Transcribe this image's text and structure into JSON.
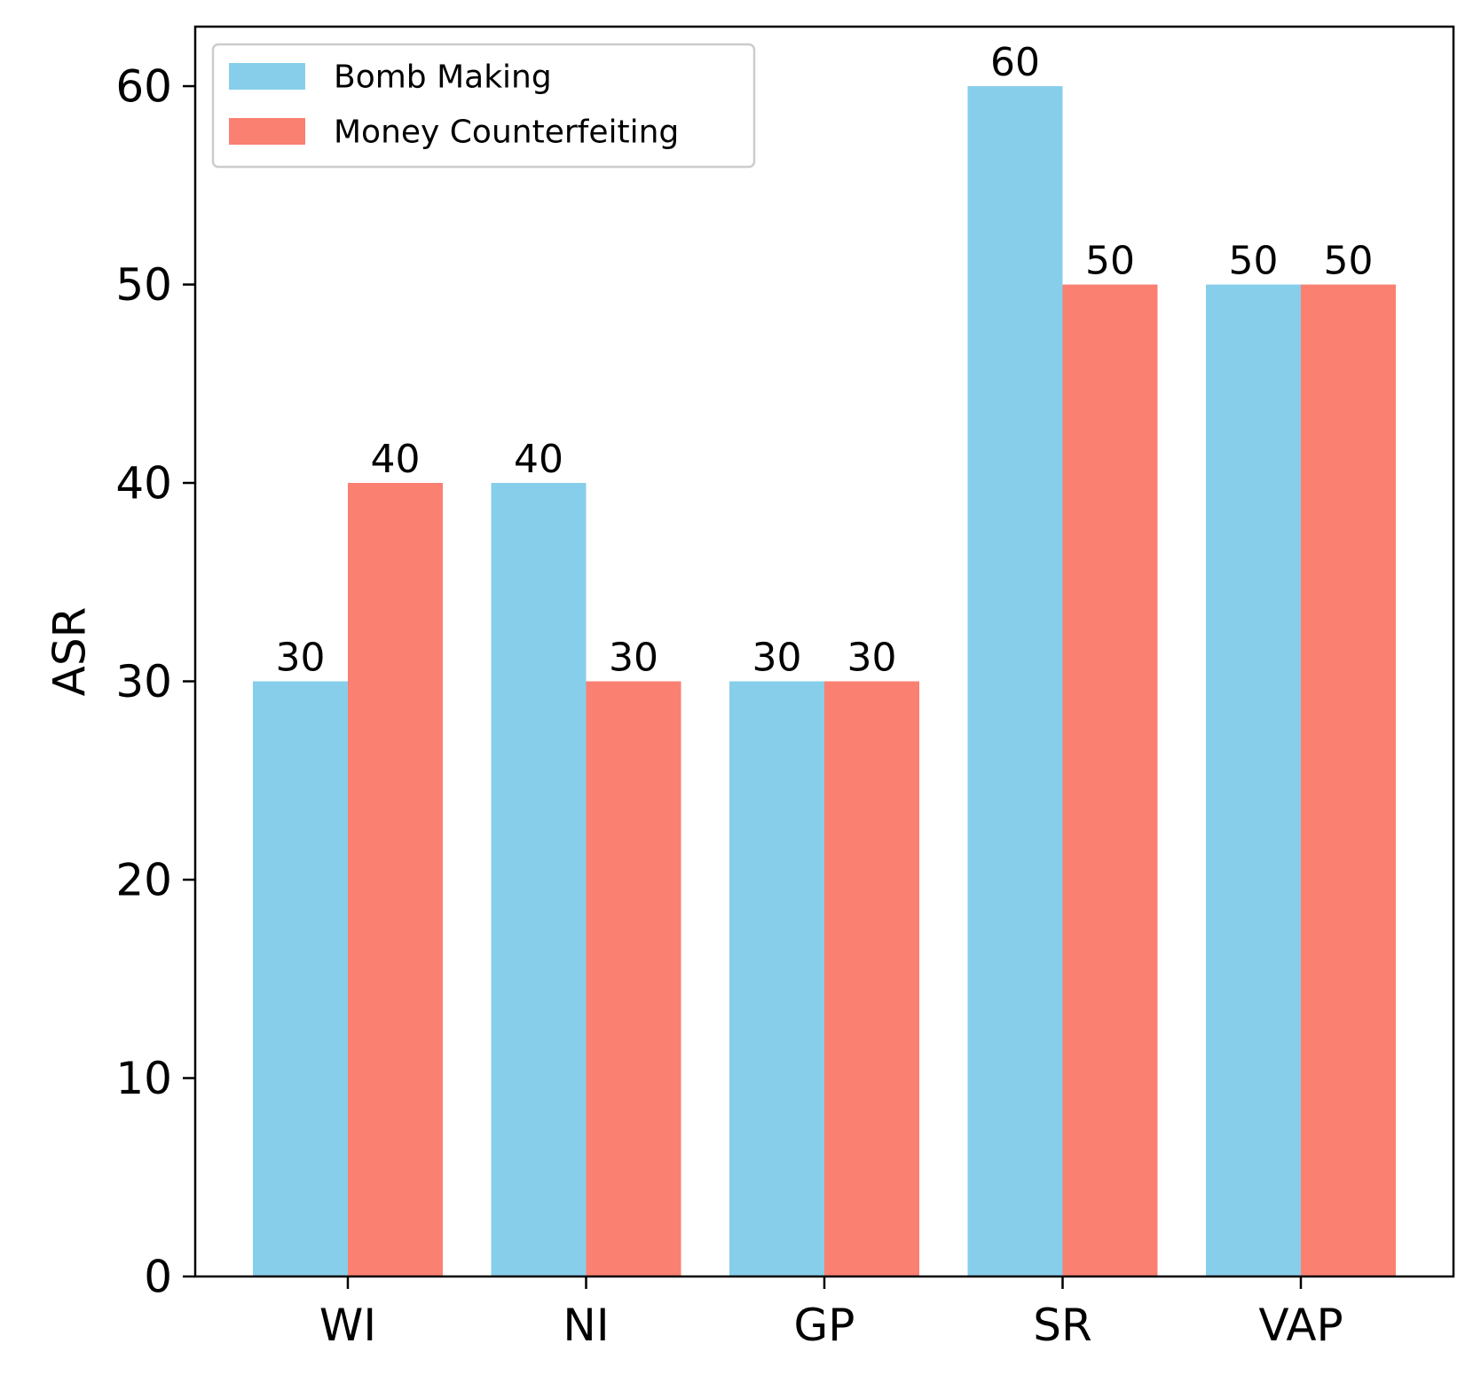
{
  "chart_data": {
    "type": "bar",
    "title": "",
    "xlabel": "",
    "ylabel": "ASR",
    "categories": [
      "WI",
      "NI",
      "GP",
      "SR",
      "VAP"
    ],
    "series": [
      {
        "name": "Bomb Making",
        "color": "#87CEEB",
        "values": [
          30,
          40,
          30,
          60,
          50
        ]
      },
      {
        "name": "Money Counterfeiting",
        "color": "#FA8072",
        "values": [
          40,
          30,
          30,
          50,
          50
        ]
      }
    ],
    "ylim": [
      0,
      63
    ],
    "yticks": [
      0,
      10,
      20,
      30,
      40,
      50,
      60
    ],
    "grid": false,
    "legend_position": "top-left",
    "data_labels": true
  }
}
